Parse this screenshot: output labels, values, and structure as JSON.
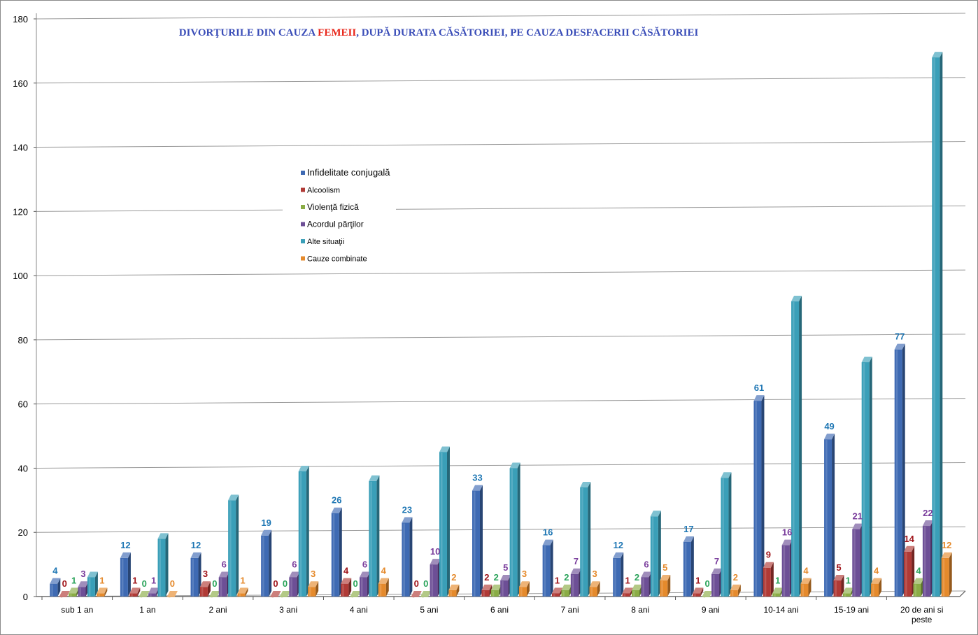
{
  "chart_data": {
    "type": "bar",
    "title_parts": [
      {
        "text": "DIVORŢURILE DIN CAUZA ",
        "color": "#3a4db8"
      },
      {
        "text": "FEMEII",
        "color": "#e8271b"
      },
      {
        "text": ",  DUPĂ DURATA CĂSĂTORIEI, PE CAUZA DESFACERII CĂSĂTORIEI",
        "color": "#3a4db8"
      }
    ],
    "categories": [
      [
        "sub 1 an"
      ],
      [
        "1 an"
      ],
      [
        "2 ani"
      ],
      [
        "3 ani"
      ],
      [
        "4 ani"
      ],
      [
        "5 ani"
      ],
      [
        "6 ani"
      ],
      [
        "7 ani"
      ],
      [
        "8 ani"
      ],
      [
        "9 ani"
      ],
      [
        "10-14 ani"
      ],
      [
        "15-19 ani"
      ],
      [
        "20 de ani si",
        "peste"
      ]
    ],
    "ylim": [
      0,
      180
    ],
    "yticks": [
      0,
      20,
      40,
      60,
      80,
      100,
      120,
      140,
      160,
      180
    ],
    "grid": true,
    "legend_position": "center-left",
    "series": [
      {
        "name": "Infidelitate conjugală",
        "color": "#3e6ab3",
        "label_color": "#1f77b4",
        "show_labels": true,
        "values": [
          4,
          12,
          12,
          19,
          26,
          23,
          33,
          16,
          12,
          17,
          61,
          49,
          77
        ]
      },
      {
        "name": "Alcoolism",
        "color": "#b03a36",
        "label_color": "#a0151b",
        "show_labels": true,
        "values": [
          0,
          1,
          3,
          0,
          4,
          0,
          2,
          1,
          1,
          1,
          9,
          5,
          14
        ]
      },
      {
        "name": "Violenţă fizică",
        "color": "#8aac45",
        "label_color": "#2aa35a",
        "show_labels": true,
        "values": [
          1,
          0,
          0,
          0,
          0,
          0,
          2,
          2,
          2,
          0,
          1,
          1,
          4
        ]
      },
      {
        "name": "Acordul părţilor",
        "color": "#6d4f96",
        "label_color": "#7a3d9c",
        "show_labels": true,
        "values": [
          3,
          1,
          6,
          6,
          6,
          10,
          5,
          7,
          6,
          7,
          16,
          21,
          22
        ]
      },
      {
        "name": "Alte situaţii",
        "color": "#3a9fb8",
        "label_color": "#3a9fb8",
        "show_labels": false,
        "values": [
          6,
          18,
          30,
          39,
          36,
          45,
          40,
          34,
          25,
          37,
          92,
          73,
          168
        ]
      },
      {
        "name": "Cauze combinate",
        "color": "#e58a2c",
        "label_color": "#e58a2c",
        "show_labels": true,
        "values": [
          1,
          0,
          1,
          3,
          4,
          2,
          3,
          3,
          5,
          2,
          4,
          4,
          12
        ]
      }
    ]
  }
}
